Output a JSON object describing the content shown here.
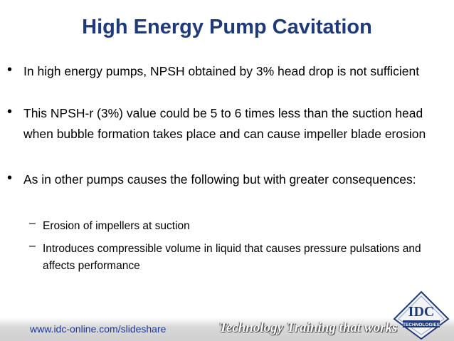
{
  "header": {
    "title": "High Energy Pump Cavitation"
  },
  "bullets": [
    {
      "text": "In high energy pumps, NPSH obtained by 3% head drop is not sufficient"
    },
    {
      "text": "This NPSH-r (3%) value could be 5 to 6 times less than the suction head when bubble formation takes place and can cause impeller blade erosion"
    },
    {
      "text": "As in other pumps causes the following but with greater consequences:",
      "children": [
        "Erosion of impellers at suction",
        "Introduces compressible volume in liquid that causes pressure pulsations and affects performance"
      ]
    }
  ],
  "footer": {
    "url": "www.idc-online.com/slideshare",
    "tagline": "Technology Training that works",
    "logo": {
      "name": "IDC",
      "subtitle": "TECHNOLOGIES"
    }
  }
}
